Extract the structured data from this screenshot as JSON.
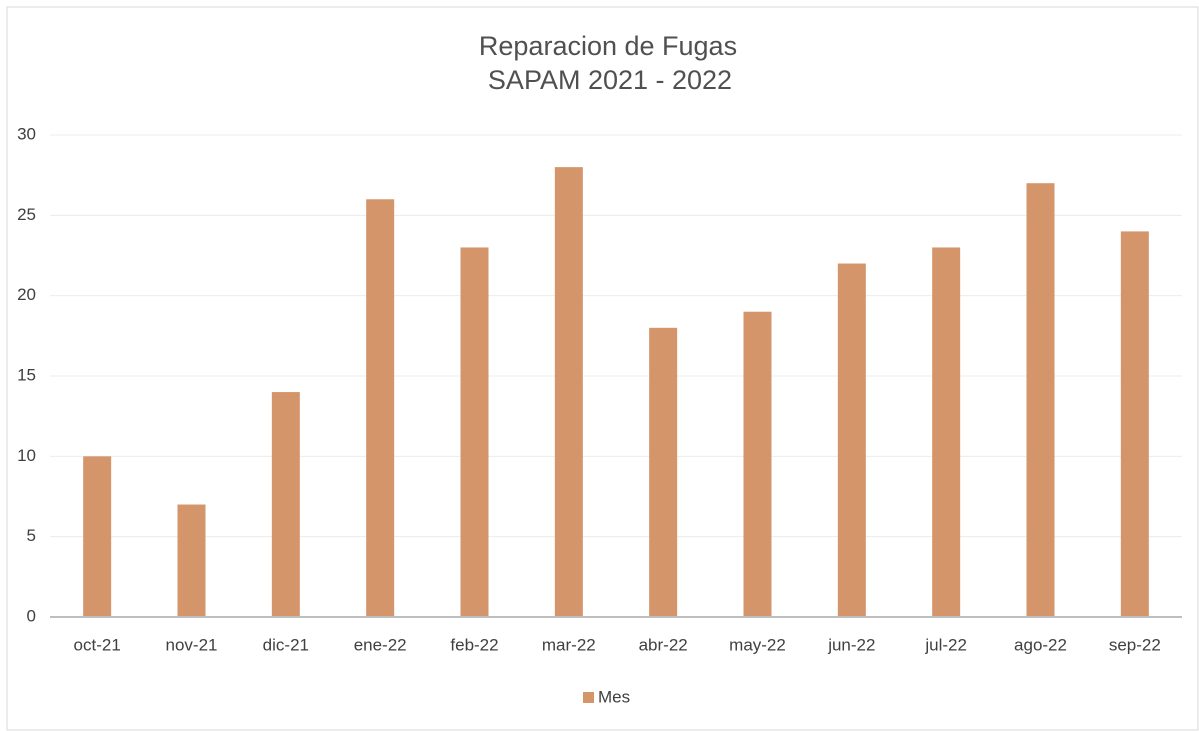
{
  "chart_data": {
    "type": "bar",
    "title": "Reparacion de Fugas",
    "subtitle": "SAPAM 2021 - 2022",
    "categories": [
      "oct-21",
      "nov-21",
      "dic-21",
      "ene-22",
      "feb-22",
      "mar-22",
      "abr-22",
      "may-22",
      "jun-22",
      "jul-22",
      "ago-22",
      "sep-22"
    ],
    "series": [
      {
        "name": "Mes",
        "color": "#d4956a",
        "values": [
          10,
          7,
          14,
          26,
          23,
          28,
          18,
          19,
          22,
          23,
          27,
          24
        ]
      }
    ],
    "ylim": [
      0,
      30
    ],
    "yticks": [
      0,
      5,
      10,
      15,
      20,
      25,
      30
    ],
    "grid": true,
    "legend": "bottom"
  }
}
